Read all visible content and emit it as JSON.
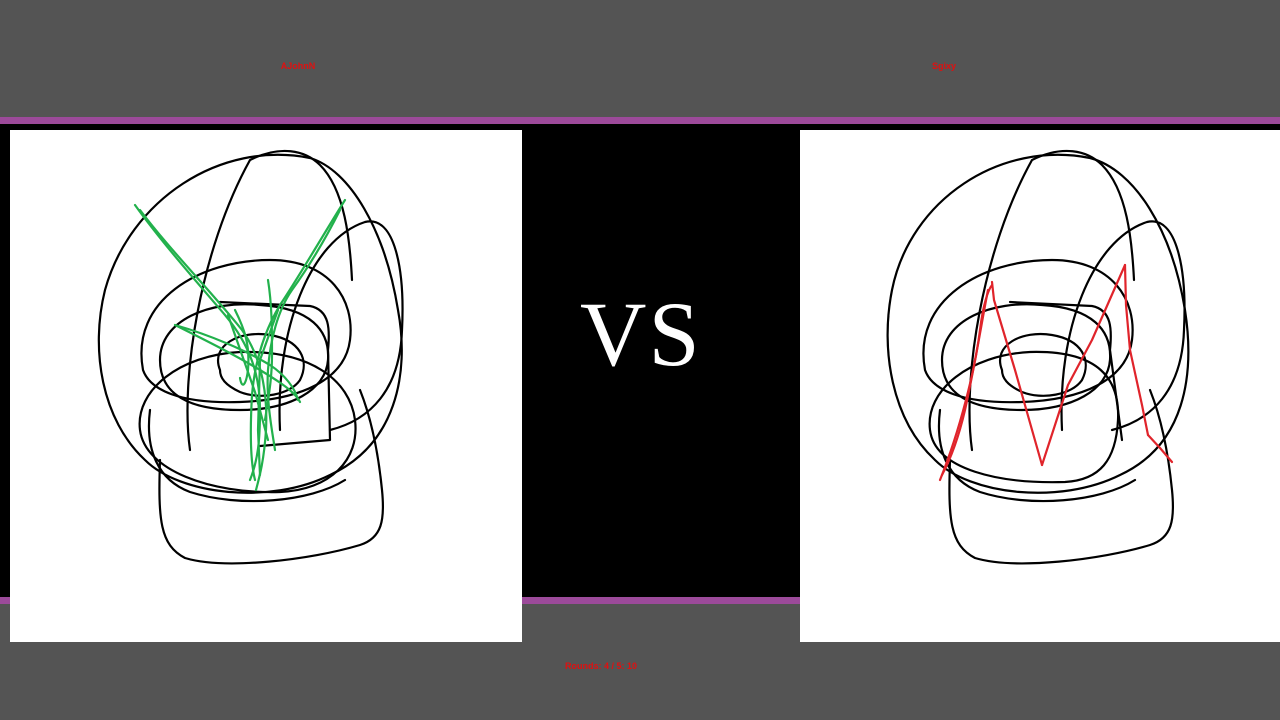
{
  "players": {
    "left": {
      "name": "AJohnN",
      "stroke_color": "#22b14c"
    },
    "right": {
      "name": "Sgixy",
      "stroke_color": "#e0242b"
    }
  },
  "vs_label": "VS",
  "round_info": "Rounds: 4 / 5: 10",
  "colors": {
    "background": "#545454",
    "accent_line": "#9c4a9a",
    "center_band": "#000000",
    "label_red": "#e01010"
  }
}
